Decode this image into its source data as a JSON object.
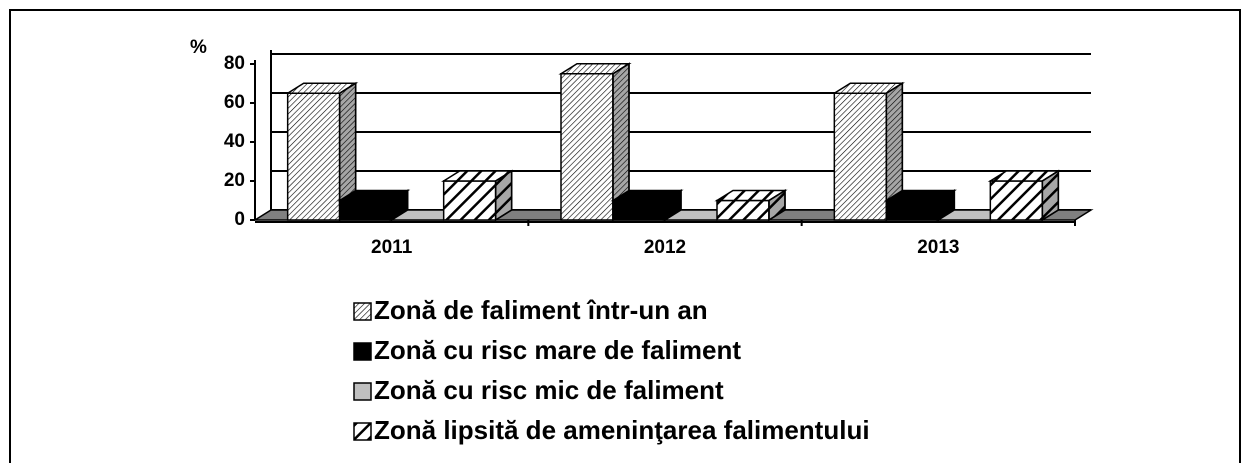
{
  "chart_data": {
    "type": "bar3d",
    "y_label": "%",
    "categories": [
      "2011",
      "2012",
      "2013"
    ],
    "series": [
      {
        "name": "Zonă de faliment într-un an",
        "color": "#ffffff",
        "values": [
          65,
          75,
          65
        ]
      },
      {
        "name": "Zonă cu risc mare de faliment",
        "color": "#000000",
        "values": [
          10,
          10,
          10
        ]
      },
      {
        "name": "Zonă cu risc mic de faliment",
        "color": "#c0c0c0",
        "values": [
          0,
          0,
          0
        ]
      },
      {
        "name": "Zonă lipsită de ameninţarea falimentului",
        "color": "#ffffff",
        "values": [
          20,
          10,
          20
        ]
      }
    ],
    "ylim": [
      0,
      80
    ],
    "yticks": [
      0,
      20,
      40,
      60,
      80
    ],
    "grid": true
  }
}
